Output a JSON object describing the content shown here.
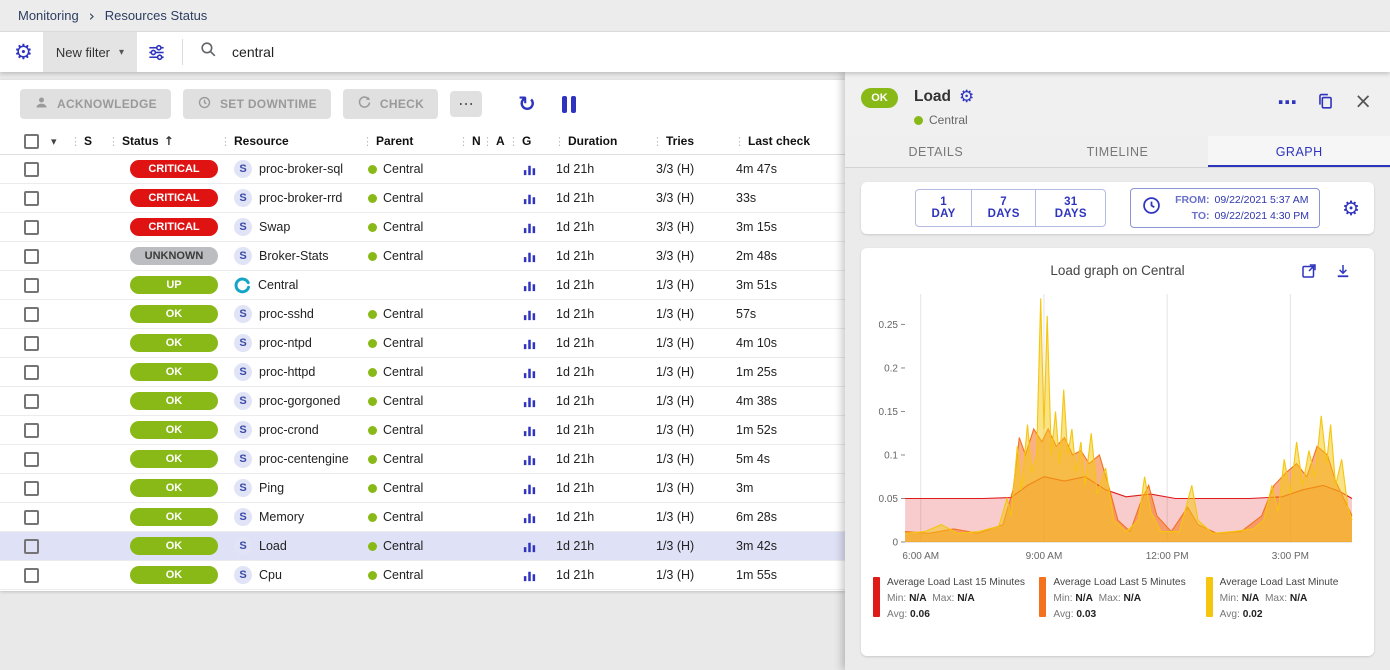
{
  "colors": {
    "accent": "#2e34be",
    "ok-green": "#88b917",
    "critical-red": "#e01313",
    "unknown-gray": "#bcbdc0",
    "selected-row": "#dfe1f6",
    "chart-red": "#e01919",
    "chart-orange": "#f4711e",
    "chart-yellow": "#f5c60d"
  },
  "icons": {
    "gear": "⚙",
    "caret_down": "▾",
    "sort_asc": "↑",
    "more": "⋯",
    "refresh": "↻",
    "close": "×",
    "chevron_right": "›",
    "drag": "⋮"
  },
  "breadcrumb": {
    "items": [
      "Monitoring",
      "Resources Status"
    ]
  },
  "filter_bar": {
    "new_filter_label": "New filter",
    "search_value": "central"
  },
  "toolbar": {
    "acknowledge_label": "ACKNOWLEDGE",
    "set_downtime_label": "SET DOWNTIME",
    "check_label": "CHECK"
  },
  "table": {
    "columns": [
      "S",
      "Status",
      "Resource",
      "Parent",
      "N",
      "A",
      "G",
      "Duration",
      "Tries",
      "Last check"
    ],
    "service_icon_letter": "S",
    "rows": [
      {
        "status": "CRITICAL",
        "status_key": "critical",
        "kind": "service",
        "resource": "proc-broker-sql",
        "parent": "Central",
        "duration": "1d 21h",
        "tries": "3/3 (H)",
        "last_check": "4m 47s",
        "selected": false
      },
      {
        "status": "CRITICAL",
        "status_key": "critical",
        "kind": "service",
        "resource": "proc-broker-rrd",
        "parent": "Central",
        "duration": "1d 21h",
        "tries": "3/3 (H)",
        "last_check": "33s",
        "selected": false
      },
      {
        "status": "CRITICAL",
        "status_key": "critical",
        "kind": "service",
        "resource": "Swap",
        "parent": "Central",
        "duration": "1d 21h",
        "tries": "3/3 (H)",
        "last_check": "3m 15s",
        "selected": false
      },
      {
        "status": "UNKNOWN",
        "status_key": "unknown",
        "kind": "service",
        "resource": "Broker-Stats",
        "parent": "Central",
        "duration": "1d 21h",
        "tries": "3/3 (H)",
        "last_check": "2m 48s",
        "selected": false
      },
      {
        "status": "UP",
        "status_key": "up",
        "kind": "host",
        "resource": "Central",
        "parent": "",
        "duration": "1d 21h",
        "tries": "1/3 (H)",
        "last_check": "3m 51s",
        "selected": false
      },
      {
        "status": "OK",
        "status_key": "ok",
        "kind": "service",
        "resource": "proc-sshd",
        "parent": "Central",
        "duration": "1d 21h",
        "tries": "1/3 (H)",
        "last_check": "57s",
        "selected": false
      },
      {
        "status": "OK",
        "status_key": "ok",
        "kind": "service",
        "resource": "proc-ntpd",
        "parent": "Central",
        "duration": "1d 21h",
        "tries": "1/3 (H)",
        "last_check": "4m 10s",
        "selected": false
      },
      {
        "status": "OK",
        "status_key": "ok",
        "kind": "service",
        "resource": "proc-httpd",
        "parent": "Central",
        "duration": "1d 21h",
        "tries": "1/3 (H)",
        "last_check": "1m 25s",
        "selected": false
      },
      {
        "status": "OK",
        "status_key": "ok",
        "kind": "service",
        "resource": "proc-gorgoned",
        "parent": "Central",
        "duration": "1d 21h",
        "tries": "1/3 (H)",
        "last_check": "4m 38s",
        "selected": false
      },
      {
        "status": "OK",
        "status_key": "ok",
        "kind": "service",
        "resource": "proc-crond",
        "parent": "Central",
        "duration": "1d 21h",
        "tries": "1/3 (H)",
        "last_check": "1m 52s",
        "selected": false
      },
      {
        "status": "OK",
        "status_key": "ok",
        "kind": "service",
        "resource": "proc-centengine",
        "parent": "Central",
        "duration": "1d 21h",
        "tries": "1/3 (H)",
        "last_check": "5m 4s",
        "selected": false
      },
      {
        "status": "OK",
        "status_key": "ok",
        "kind": "service",
        "resource": "Ping",
        "parent": "Central",
        "duration": "1d 21h",
        "tries": "1/3 (H)",
        "last_check": "3m",
        "selected": false
      },
      {
        "status": "OK",
        "status_key": "ok",
        "kind": "service",
        "resource": "Memory",
        "parent": "Central",
        "duration": "1d 21h",
        "tries": "1/3 (H)",
        "last_check": "6m 28s",
        "selected": false
      },
      {
        "status": "OK",
        "status_key": "ok",
        "kind": "service",
        "resource": "Load",
        "parent": "Central",
        "duration": "1d 21h",
        "tries": "1/3 (H)",
        "last_check": "3m 42s",
        "selected": true
      },
      {
        "status": "OK",
        "status_key": "ok",
        "kind": "service",
        "resource": "Cpu",
        "parent": "Central",
        "duration": "1d 21h",
        "tries": "1/3 (H)",
        "last_check": "1m 55s",
        "selected": false
      }
    ]
  },
  "panel": {
    "status": "OK",
    "title": "Load",
    "parent": "Central",
    "tabs": [
      "DETAILS",
      "TIMELINE",
      "GRAPH"
    ],
    "active_tab": "GRAPH",
    "periods": [
      "1 DAY",
      "7 DAYS",
      "31 DAYS"
    ],
    "from_label": "FROM:",
    "from_value": "09/22/2021 5:37 AM",
    "to_label": "TO:",
    "to_value": "09/22/2021 4:30 PM",
    "graph_title": "Load graph on Central",
    "legend": [
      {
        "color": "#e01919",
        "label": "Average Load Last 15 Minutes",
        "min_label": "Min:",
        "min": "N/A",
        "max_label": "Max:",
        "max": "N/A",
        "avg_label": "Avg:",
        "avg": "0.06"
      },
      {
        "color": "#f4711e",
        "label": "Average Load Last 5 Minutes",
        "min_label": "Min:",
        "min": "N/A",
        "max_label": "Max:",
        "max": "N/A",
        "avg_label": "Avg:",
        "avg": "0.03"
      },
      {
        "color": "#f5c60d",
        "label": "Average Load Last Minute",
        "min_label": "Min:",
        "min": "N/A",
        "max_label": "Max:",
        "max": "N/A",
        "avg_label": "Avg:",
        "avg": "0.02"
      }
    ]
  },
  "chart_data": {
    "type": "area",
    "title": "Load graph on Central",
    "xlabel": "",
    "ylabel": "",
    "xlim": [
      5.617,
      16.5
    ],
    "ylim": [
      0,
      0.285
    ],
    "x_ticks": [
      6,
      9,
      12,
      15
    ],
    "x_tick_labels": [
      "6:00 AM",
      "9:00 AM",
      "12:00 PM",
      "3:00 PM"
    ],
    "y_ticks": [
      0,
      0.05,
      0.1,
      0.15,
      0.2,
      0.25
    ],
    "y_tick_labels": [
      "0",
      "0.05",
      "0.1",
      "0.15",
      "0.2",
      "0.25"
    ],
    "grid": "vertical",
    "legend_position": "bottom",
    "series": [
      {
        "name": "Average Load Last 15 Minutes",
        "color": "#e01919",
        "fill_opacity": 0.22,
        "avg": 0.06,
        "min": "N/A",
        "max": "N/A",
        "points": [
          [
            5.62,
            0.05
          ],
          [
            6.5,
            0.05
          ],
          [
            7.5,
            0.05
          ],
          [
            8.2,
            0.051
          ],
          [
            8.6,
            0.065
          ],
          [
            9.0,
            0.075
          ],
          [
            9.5,
            0.07
          ],
          [
            10.0,
            0.075
          ],
          [
            10.5,
            0.06
          ],
          [
            11.0,
            0.052
          ],
          [
            11.6,
            0.055
          ],
          [
            12.2,
            0.05
          ],
          [
            13.0,
            0.05
          ],
          [
            14.0,
            0.05
          ],
          [
            14.8,
            0.052
          ],
          [
            15.3,
            0.06
          ],
          [
            15.8,
            0.065
          ],
          [
            16.2,
            0.058
          ],
          [
            16.5,
            0.05
          ]
        ]
      },
      {
        "name": "Average Load Last 5 Minutes",
        "color": "#f4711e",
        "fill_opacity": 0.55,
        "avg": 0.03,
        "min": "N/A",
        "max": "N/A",
        "points": [
          [
            5.62,
            0.012
          ],
          [
            6.2,
            0.01
          ],
          [
            6.8,
            0.015
          ],
          [
            7.4,
            0.01
          ],
          [
            8.0,
            0.02
          ],
          [
            8.25,
            0.06
          ],
          [
            8.4,
            0.12
          ],
          [
            8.55,
            0.1
          ],
          [
            8.75,
            0.13
          ],
          [
            8.95,
            0.115
          ],
          [
            9.1,
            0.13
          ],
          [
            9.3,
            0.11
          ],
          [
            9.5,
            0.12
          ],
          [
            9.7,
            0.1
          ],
          [
            9.9,
            0.105
          ],
          [
            10.1,
            0.09
          ],
          [
            10.35,
            0.1
          ],
          [
            10.6,
            0.06
          ],
          [
            10.8,
            0.025
          ],
          [
            11.1,
            0.012
          ],
          [
            11.35,
            0.045
          ],
          [
            11.55,
            0.065
          ],
          [
            11.75,
            0.03
          ],
          [
            12.1,
            0.012
          ],
          [
            12.5,
            0.04
          ],
          [
            12.75,
            0.02
          ],
          [
            13.2,
            0.01
          ],
          [
            13.8,
            0.012
          ],
          [
            14.3,
            0.03
          ],
          [
            14.6,
            0.065
          ],
          [
            14.9,
            0.08
          ],
          [
            15.15,
            0.09
          ],
          [
            15.4,
            0.075
          ],
          [
            15.65,
            0.11
          ],
          [
            15.9,
            0.1
          ],
          [
            16.1,
            0.07
          ],
          [
            16.3,
            0.05
          ],
          [
            16.5,
            0.03
          ]
        ]
      },
      {
        "name": "Average Load Last Minute",
        "color": "#f5c60d",
        "fill_opacity": 0.5,
        "avg": 0.02,
        "min": "N/A",
        "max": "N/A",
        "points": [
          [
            5.62,
            0.01
          ],
          [
            6.1,
            0.012
          ],
          [
            6.5,
            0.02
          ],
          [
            6.9,
            0.01
          ],
          [
            7.4,
            0.012
          ],
          [
            7.9,
            0.018
          ],
          [
            8.1,
            0.05
          ],
          [
            8.2,
            0.03
          ],
          [
            8.35,
            0.11
          ],
          [
            8.45,
            0.06
          ],
          [
            8.6,
            0.135
          ],
          [
            8.7,
            0.08
          ],
          [
            8.82,
            0.1
          ],
          [
            8.92,
            0.28
          ],
          [
            9.0,
            0.13
          ],
          [
            9.08,
            0.26
          ],
          [
            9.18,
            0.1
          ],
          [
            9.28,
            0.15
          ],
          [
            9.38,
            0.09
          ],
          [
            9.48,
            0.175
          ],
          [
            9.58,
            0.1
          ],
          [
            9.68,
            0.13
          ],
          [
            9.78,
            0.08
          ],
          [
            9.9,
            0.115
          ],
          [
            10.0,
            0.065
          ],
          [
            10.15,
            0.125
          ],
          [
            10.3,
            0.055
          ],
          [
            10.5,
            0.085
          ],
          [
            10.7,
            0.025
          ],
          [
            11.0,
            0.012
          ],
          [
            11.3,
            0.025
          ],
          [
            11.45,
            0.075
          ],
          [
            11.6,
            0.035
          ],
          [
            11.85,
            0.012
          ],
          [
            12.3,
            0.012
          ],
          [
            12.6,
            0.065
          ],
          [
            12.75,
            0.025
          ],
          [
            13.1,
            0.01
          ],
          [
            13.6,
            0.012
          ],
          [
            14.1,
            0.015
          ],
          [
            14.35,
            0.025
          ],
          [
            14.55,
            0.065
          ],
          [
            14.7,
            0.035
          ],
          [
            14.85,
            0.095
          ],
          [
            15.0,
            0.055
          ],
          [
            15.15,
            0.115
          ],
          [
            15.3,
            0.065
          ],
          [
            15.45,
            0.105
          ],
          [
            15.6,
            0.075
          ],
          [
            15.75,
            0.145
          ],
          [
            15.88,
            0.09
          ],
          [
            15.98,
            0.135
          ],
          [
            16.1,
            0.065
          ],
          [
            16.25,
            0.095
          ],
          [
            16.4,
            0.04
          ],
          [
            16.5,
            0.025
          ]
        ]
      }
    ]
  }
}
